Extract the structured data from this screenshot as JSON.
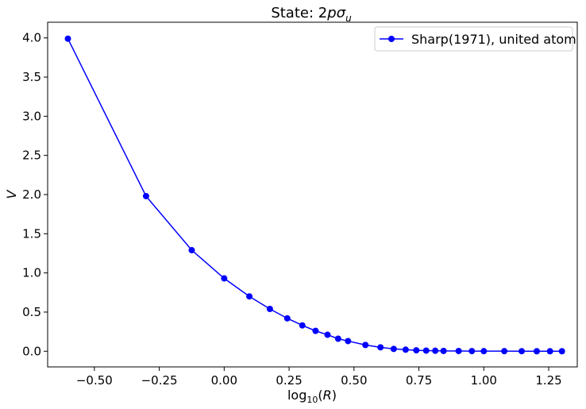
{
  "chart_data": {
    "type": "line",
    "title": {
      "prefix": "State: 2",
      "p": "p",
      "sigma": "σ",
      "sub": "u"
    },
    "xlabel": {
      "base": "log",
      "sub": "10",
      "open": "(",
      "var": "R",
      "close": ")"
    },
    "ylabel": "V",
    "xlim": [
      -0.68,
      1.36
    ],
    "ylim": [
      -0.2,
      4.2
    ],
    "x_ticks": [
      -0.5,
      -0.25,
      0.0,
      0.25,
      0.5,
      0.75,
      1.0,
      1.25
    ],
    "x_tick_labels": [
      "−0.50",
      "−0.25",
      "0.00",
      "0.25",
      "0.50",
      "0.75",
      "1.00",
      "1.25"
    ],
    "y_ticks": [
      0.0,
      0.5,
      1.0,
      1.5,
      2.0,
      2.5,
      3.0,
      3.5,
      4.0
    ],
    "y_tick_labels": [
      "0.0",
      "0.5",
      "1.0",
      "1.5",
      "2.0",
      "2.5",
      "3.0",
      "3.5",
      "4.0"
    ],
    "grid": false,
    "legend": {
      "position": "top-right"
    },
    "series": [
      {
        "name": "Sharp(1971), united atom",
        "color": "#0000ff",
        "marker": "circle",
        "x": [
          -0.602,
          -0.301,
          -0.125,
          0.0,
          0.097,
          0.176,
          0.243,
          0.301,
          0.352,
          0.398,
          0.439,
          0.477,
          0.544,
          0.602,
          0.653,
          0.699,
          0.74,
          0.778,
          0.813,
          0.845,
          0.903,
          0.954,
          1.0,
          1.079,
          1.146,
          1.204,
          1.255,
          1.301
        ],
        "y": [
          3.99,
          1.98,
          1.29,
          0.93,
          0.7,
          0.54,
          0.42,
          0.33,
          0.26,
          0.21,
          0.16,
          0.13,
          0.08,
          0.05,
          0.03,
          0.02,
          0.012,
          0.008,
          0.006,
          0.004,
          0.003,
          0.002,
          0.001,
          0.001,
          0.0005,
          0.0003,
          0.0002,
          0.0001
        ]
      }
    ]
  }
}
